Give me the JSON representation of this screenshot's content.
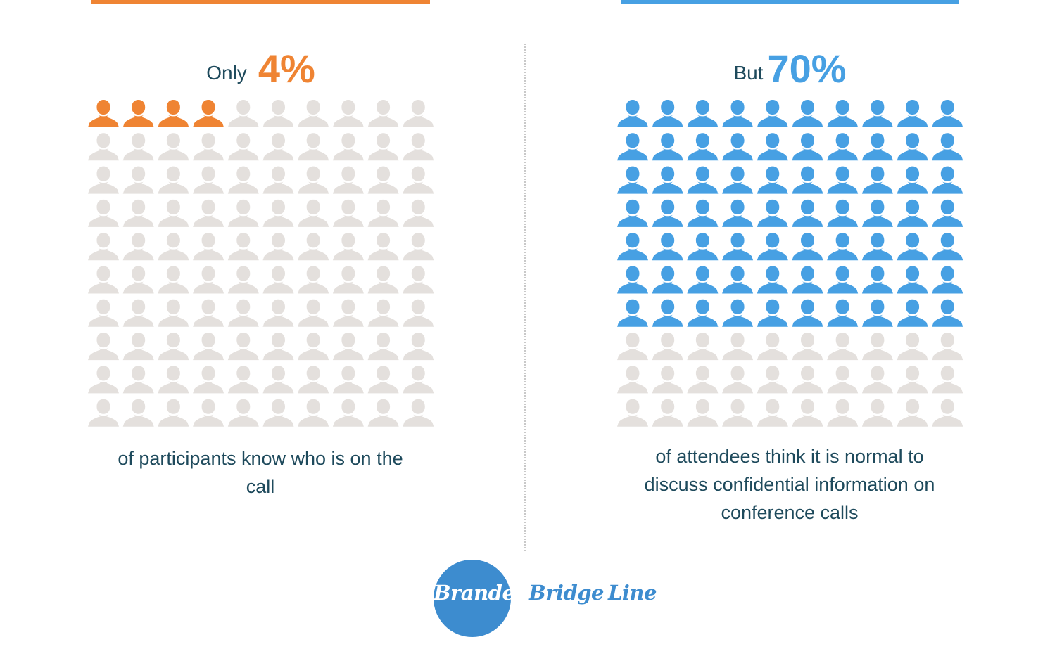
{
  "colors": {
    "orange": "#ef8433",
    "blue": "#47a0e3",
    "empty": "#e4e0dd",
    "text": "#1e4a5c",
    "logo_blue": "#3d8ccf"
  },
  "icons": {
    "person": "person-silhouette-icon"
  },
  "left": {
    "lead": "Only",
    "percent_label": "4%",
    "caption": "of participants know who is on the call"
  },
  "right": {
    "lead": "But",
    "percent_label": "70%",
    "caption": "of attendees think it is normal to discuss confidential information on conference calls"
  },
  "logo": {
    "part1": "Branded",
    "part2": "Bridge",
    "part3": "Line"
  },
  "chart_data": [
    {
      "type": "pictogram",
      "total": 100,
      "rows": 10,
      "columns": 10,
      "highlighted": 4,
      "value_percent": 4,
      "highlight_color": "#ef8433",
      "label": "of participants know who is on the call"
    },
    {
      "type": "pictogram",
      "total": 100,
      "rows": 10,
      "columns": 10,
      "highlighted": 70,
      "value_percent": 70,
      "highlight_color": "#47a0e3",
      "label": "of attendees think it is normal to discuss confidential information on conference calls"
    }
  ]
}
